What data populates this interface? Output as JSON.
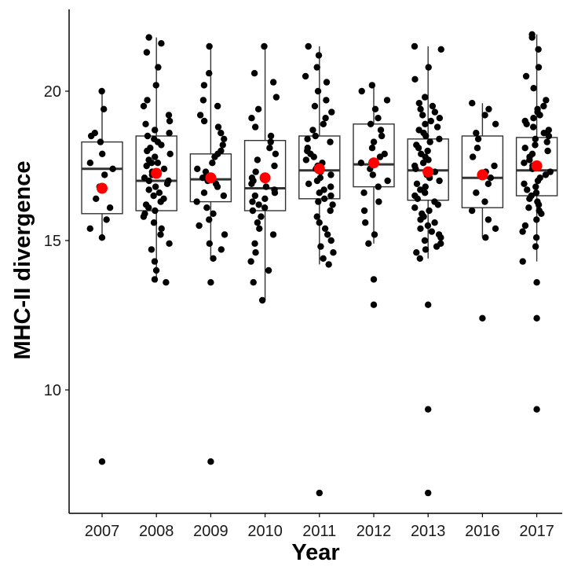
{
  "chart_data": {
    "type": "box",
    "xlabel": "Year",
    "ylabel": "MHC-II divergence",
    "ylim": [
      5.9,
      22.5
    ],
    "yticks": [
      10,
      15,
      20
    ],
    "categories": [
      "2007",
      "2008",
      "2009",
      "2010",
      "2011",
      "2012",
      "2013",
      "2016",
      "2017"
    ],
    "grid": false,
    "legend": "none",
    "colors": {
      "box_stroke": "#333333",
      "median": "#333333",
      "points": "#000000",
      "mean": "#ff0000",
      "axis": "#000000"
    },
    "boxes": [
      {
        "year": "2007",
        "q1": 15.9,
        "median": 17.4,
        "q3": 18.3,
        "whisker_low": 15.1,
        "whisker_high": 20.0,
        "mean": 16.75,
        "outliers": [
          7.6
        ]
      },
      {
        "year": "2008",
        "q1": 16.0,
        "median": 17.0,
        "q3": 18.5,
        "whisker_low": 13.6,
        "whisker_high": 21.8,
        "mean": 17.25,
        "outliers": []
      },
      {
        "year": "2009",
        "q1": 16.3,
        "median": 17.05,
        "q3": 17.9,
        "whisker_low": 14.4,
        "whisker_high": 21.5,
        "mean": 17.1,
        "outliers": [
          13.6,
          7.6
        ]
      },
      {
        "year": "2010",
        "q1": 16.0,
        "median": 16.75,
        "q3": 18.35,
        "whisker_low": 13.0,
        "whisker_high": 21.5,
        "mean": 17.1,
        "outliers": []
      },
      {
        "year": "2011",
        "q1": 16.4,
        "median": 17.35,
        "q3": 18.5,
        "whisker_low": 14.2,
        "whisker_high": 21.5,
        "mean": 17.4,
        "outliers": [
          6.55
        ]
      },
      {
        "year": "2012",
        "q1": 16.8,
        "median": 17.55,
        "q3": 18.9,
        "whisker_low": 14.9,
        "whisker_high": 20.2,
        "mean": 17.6,
        "outliers": [
          13.7,
          12.85
        ]
      },
      {
        "year": "2013",
        "q1": 16.35,
        "median": 17.35,
        "q3": 18.4,
        "whisker_low": 14.4,
        "whisker_high": 21.5,
        "mean": 17.3,
        "outliers": [
          12.85,
          9.35,
          6.55
        ]
      },
      {
        "year": "2016",
        "q1": 16.1,
        "median": 17.1,
        "q3": 18.5,
        "whisker_low": 15.1,
        "whisker_high": 19.6,
        "mean": 17.2,
        "outliers": [
          12.4
        ]
      },
      {
        "year": "2017",
        "q1": 16.5,
        "median": 17.35,
        "q3": 18.45,
        "whisker_low": 14.3,
        "whisker_high": 21.9,
        "mean": 17.5,
        "outliers": [
          13.6,
          12.4,
          9.35
        ]
      }
    ],
    "jitter_points": {
      "2007": [
        20.0,
        19.4,
        18.5,
        18.6,
        18.3,
        17.9,
        17.6,
        17.4,
        17.2,
        16.8,
        16.4,
        16.1,
        15.7,
        15.4,
        15.1,
        7.6
      ],
      "2008": [
        21.8,
        21.6,
        21.3,
        20.8,
        20.2,
        19.7,
        19.5,
        19.2,
        19.0,
        18.9,
        18.7,
        18.6,
        18.5,
        18.4,
        18.3,
        18.2,
        18.1,
        18.0,
        17.9,
        17.8,
        17.7,
        17.6,
        17.6,
        17.5,
        17.4,
        17.3,
        17.2,
        17.1,
        17.0,
        17.0,
        16.9,
        16.8,
        16.7,
        16.6,
        16.5,
        16.4,
        16.3,
        16.2,
        16.1,
        16.0,
        15.9,
        15.8,
        15.6,
        15.4,
        15.2,
        14.9,
        14.7,
        14.3,
        14.0,
        13.7,
        13.6
      ],
      "2009": [
        21.5,
        20.6,
        20.2,
        19.7,
        19.5,
        19.2,
        19.0,
        18.8,
        18.6,
        18.4,
        18.2,
        18.0,
        17.9,
        17.8,
        17.6,
        17.4,
        17.3,
        17.2,
        17.1,
        17.0,
        16.9,
        16.8,
        16.6,
        16.5,
        16.3,
        16.1,
        15.9,
        15.7,
        15.5,
        15.2,
        14.9,
        14.7,
        14.4,
        13.6,
        7.6
      ],
      "2010": [
        21.5,
        20.6,
        20.3,
        19.8,
        19.4,
        19.1,
        18.8,
        18.5,
        18.3,
        18.1,
        17.9,
        17.7,
        17.5,
        17.3,
        17.1,
        17.0,
        16.9,
        16.8,
        16.7,
        16.6,
        16.5,
        16.4,
        16.3,
        16.2,
        16.1,
        16.0,
        15.8,
        15.6,
        15.4,
        15.2,
        14.9,
        14.6,
        14.3,
        14.0,
        13.6,
        13.0
      ],
      "2011": [
        21.5,
        21.2,
        20.8,
        20.5,
        20.3,
        20.0,
        19.7,
        19.5,
        19.3,
        19.1,
        18.9,
        18.7,
        18.5,
        18.4,
        18.3,
        18.1,
        18.0,
        17.9,
        17.8,
        17.7,
        17.6,
        17.5,
        17.4,
        17.3,
        17.2,
        17.1,
        17.0,
        16.9,
        16.8,
        16.7,
        16.6,
        16.5,
        16.4,
        16.3,
        16.2,
        16.0,
        15.8,
        15.6,
        15.4,
        15.2,
        15.0,
        14.8,
        14.6,
        14.4,
        14.2,
        6.55
      ],
      "2012": [
        20.2,
        20.0,
        19.7,
        19.4,
        19.1,
        18.9,
        18.7,
        18.5,
        18.3,
        18.1,
        17.9,
        17.8,
        17.6,
        17.4,
        17.2,
        17.0,
        16.8,
        16.6,
        16.3,
        16.0,
        15.6,
        15.2,
        14.9,
        13.7,
        12.85
      ],
      "2013": [
        21.5,
        21.4,
        20.8,
        20.4,
        19.8,
        19.6,
        19.5,
        19.4,
        19.3,
        19.2,
        19.1,
        19.0,
        18.9,
        18.8,
        18.7,
        18.6,
        18.5,
        18.4,
        18.3,
        18.2,
        18.1,
        18.0,
        17.9,
        17.8,
        17.7,
        17.6,
        17.5,
        17.4,
        17.3,
        17.2,
        17.1,
        17.0,
        16.9,
        16.8,
        16.7,
        16.6,
        16.5,
        16.4,
        16.3,
        16.2,
        16.1,
        16.0,
        15.9,
        15.8,
        15.7,
        15.6,
        15.5,
        15.4,
        15.3,
        15.2,
        15.1,
        15.0,
        14.9,
        14.8,
        14.7,
        14.6,
        14.4,
        12.85,
        9.35,
        6.55
      ],
      "2016": [
        19.6,
        19.4,
        19.2,
        18.9,
        18.6,
        18.4,
        18.1,
        17.8,
        17.5,
        17.3,
        17.1,
        16.9,
        16.6,
        16.3,
        16.0,
        15.7,
        15.4,
        15.1,
        12.4
      ],
      "2017": [
        21.9,
        21.8,
        21.4,
        20.8,
        20.5,
        20.1,
        19.7,
        19.5,
        19.4,
        19.3,
        19.2,
        19.1,
        19.0,
        18.9,
        18.8,
        18.7,
        18.6,
        18.5,
        18.4,
        18.3,
        18.2,
        18.1,
        18.0,
        17.9,
        17.8,
        17.7,
        17.6,
        17.5,
        17.4,
        17.3,
        17.2,
        17.1,
        17.0,
        16.9,
        16.8,
        16.7,
        16.6,
        16.5,
        16.4,
        16.3,
        16.2,
        16.1,
        16.0,
        15.9,
        15.7,
        15.5,
        15.3,
        15.1,
        14.8,
        14.3,
        13.6,
        12.4,
        9.35
      ]
    }
  }
}
